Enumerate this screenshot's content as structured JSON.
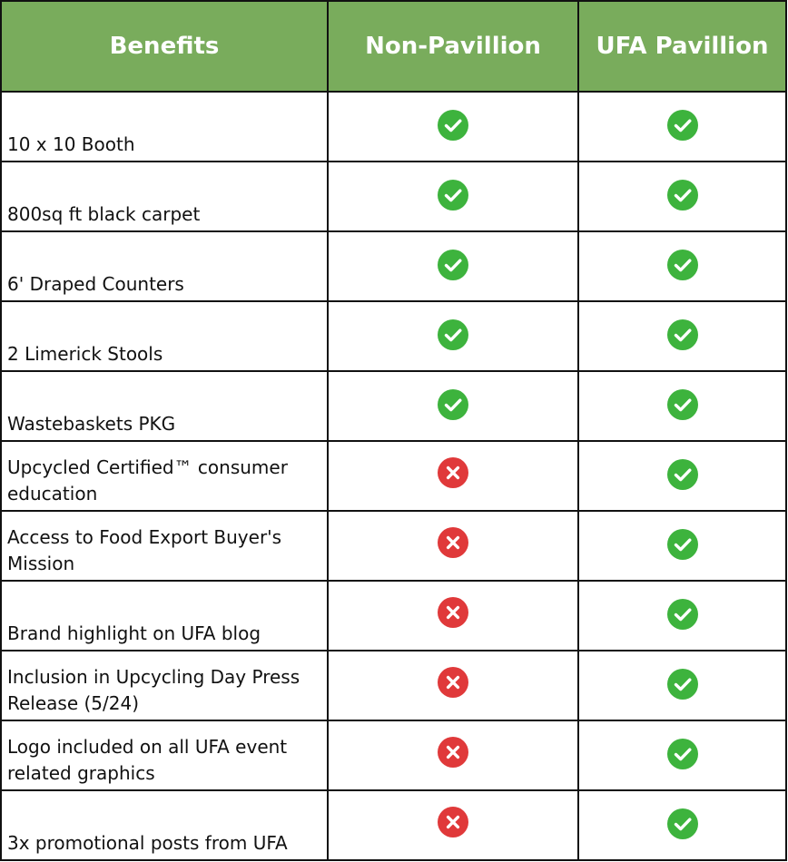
{
  "header": {
    "benefits": "Benefits",
    "non_pavillion": "Non-Pavillion",
    "ufa_pavillion": "UFA Pavillion"
  },
  "colors": {
    "header_bg": "#79AC5C",
    "check": "#3DB33D",
    "cross": "#E0393A"
  },
  "rows": [
    {
      "benefit": "10 x 10 Booth",
      "non_pavillion": "check",
      "ufa_pavillion": "check"
    },
    {
      "benefit": "800sq ft black carpet",
      "non_pavillion": "check",
      "ufa_pavillion": "check"
    },
    {
      "benefit": "6' Draped Counters",
      "non_pavillion": "check",
      "ufa_pavillion": "check"
    },
    {
      "benefit": "2 Limerick Stools",
      "non_pavillion": "check",
      "ufa_pavillion": "check"
    },
    {
      "benefit": "Wastebaskets PKG",
      "non_pavillion": "check",
      "ufa_pavillion": "check"
    },
    {
      "benefit": "Upcycled Certified™ consumer education",
      "non_pavillion": "cross",
      "ufa_pavillion": "check"
    },
    {
      "benefit": "Access to Food Export Buyer's Mission",
      "non_pavillion": "cross",
      "ufa_pavillion": "check"
    },
    {
      "benefit": "Brand highlight on UFA blog",
      "non_pavillion": "cross",
      "ufa_pavillion": "check"
    },
    {
      "benefit": "Inclusion in Upcycling Day Press Release (5/24)",
      "non_pavillion": "cross",
      "ufa_pavillion": "check"
    },
    {
      "benefit": "Logo included on all UFA event related graphics",
      "non_pavillion": "cross",
      "ufa_pavillion": "check"
    },
    {
      "benefit": "3x promotional posts from UFA",
      "non_pavillion": "cross",
      "ufa_pavillion": "check"
    }
  ]
}
